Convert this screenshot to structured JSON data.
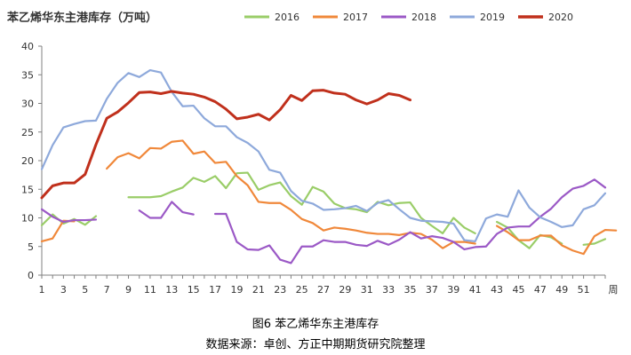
{
  "chart_data": {
    "type": "line",
    "title": "苯乙烯华东主港库存（万吨）",
    "xlabel": "周",
    "ylabel": "",
    "ylim": [
      0,
      40
    ],
    "yticks": [
      0,
      5,
      10,
      15,
      20,
      25,
      30,
      35,
      40
    ],
    "xlim": [
      1,
      53
    ],
    "xticks": [
      1,
      3,
      5,
      7,
      9,
      11,
      13,
      15,
      17,
      19,
      21,
      23,
      25,
      27,
      29,
      31,
      33,
      35,
      37,
      39,
      41,
      43,
      45,
      47,
      49,
      51
    ],
    "grid": false,
    "legend_position": "top",
    "series": [
      {
        "name": "2016",
        "color": "#9ACD68",
        "values": [
          8.7,
          10.6,
          9.0,
          9.8,
          8.8,
          10.3,
          null,
          null,
          13.6,
          13.6,
          13.6,
          13.8,
          14.6,
          15.3,
          17.0,
          16.3,
          17.3,
          15.2,
          17.8,
          17.9,
          14.9,
          15.7,
          16.2,
          13.8,
          12.3,
          15.4,
          14.6,
          12.5,
          11.7,
          11.5,
          11.0,
          12.8,
          12.2,
          12.6,
          12.7,
          10.0,
          8.6,
          7.3,
          10.0,
          8.3,
          7.3,
          null,
          9.3,
          8.3,
          6.1,
          4.7,
          7.0,
          6.6,
          5.5,
          null,
          5.3,
          5.5,
          6.3
        ]
      },
      {
        "name": "2017",
        "color": "#F0883A",
        "values": [
          5.9,
          6.4,
          9.5,
          9.4,
          null,
          null,
          18.6,
          20.6,
          21.3,
          20.4,
          22.2,
          22.1,
          23.3,
          23.5,
          21.2,
          21.6,
          19.6,
          19.8,
          17.3,
          15.7,
          12.8,
          12.6,
          12.6,
          11.4,
          9.8,
          9.1,
          7.8,
          8.3,
          8.1,
          7.8,
          7.4,
          7.2,
          7.2,
          7.0,
          7.4,
          7.2,
          6.2,
          4.7,
          5.8,
          5.8,
          5.5,
          null,
          8.6,
          7.5,
          6.1,
          6.1,
          6.9,
          6.9,
          5.2,
          4.3,
          3.7,
          6.8,
          7.9,
          7.8
        ]
      },
      {
        "name": "2018",
        "color": "#9B59C6",
        "values": [
          11.5,
          10.2,
          9.3,
          9.6,
          9.6,
          9.7,
          null,
          null,
          null,
          11.3,
          10.0,
          10.0,
          12.8,
          11.0,
          10.6,
          null,
          10.7,
          10.7,
          5.8,
          4.5,
          4.4,
          5.2,
          2.7,
          2.1,
          5.0,
          5.0,
          6.1,
          5.8,
          5.8,
          5.3,
          5.1,
          6.0,
          5.3,
          6.2,
          7.5,
          6.4,
          6.8,
          6.5,
          5.8,
          4.5,
          4.9,
          5.0,
          7.2,
          8.3,
          8.5,
          8.5,
          10.2,
          11.6,
          13.6,
          15.1,
          15.6,
          16.7,
          15.3
        ]
      },
      {
        "name": "2019",
        "color": "#8EA9DB",
        "values": [
          18.5,
          22.7,
          25.8,
          26.4,
          26.9,
          27.0,
          30.8,
          33.6,
          35.3,
          34.6,
          35.8,
          35.4,
          32.0,
          29.5,
          29.6,
          27.4,
          26.0,
          26.0,
          24.1,
          23.1,
          21.6,
          18.4,
          17.9,
          14.7,
          13.0,
          12.5,
          11.4,
          11.5,
          11.7,
          12.1,
          11.2,
          12.6,
          13.1,
          11.5,
          10.0,
          9.5,
          9.4,
          9.3,
          9.0,
          6.1,
          5.9,
          9.9,
          10.6,
          10.2,
          14.8,
          11.8,
          10.1,
          9.3,
          8.4,
          8.7,
          11.5,
          12.2,
          14.3
        ]
      },
      {
        "name": "2020",
        "color": "#C0301C",
        "values": [
          13.5,
          15.6,
          16.1,
          16.1,
          17.6,
          22.8,
          27.4,
          28.5,
          30.1,
          31.9,
          32.0,
          31.7,
          32.1,
          31.8,
          31.6,
          31.1,
          30.3,
          29.0,
          27.3,
          27.6,
          28.1,
          27.1,
          28.9,
          31.4,
          30.5,
          32.2,
          32.3,
          31.8,
          31.6,
          30.6,
          29.9,
          30.6,
          31.7,
          31.4,
          30.6
        ]
      }
    ]
  },
  "captions": {
    "figure_title": "图6 苯乙烯华东主港库存",
    "source": "数据来源：卓创、方正中期期货研究院整理"
  }
}
